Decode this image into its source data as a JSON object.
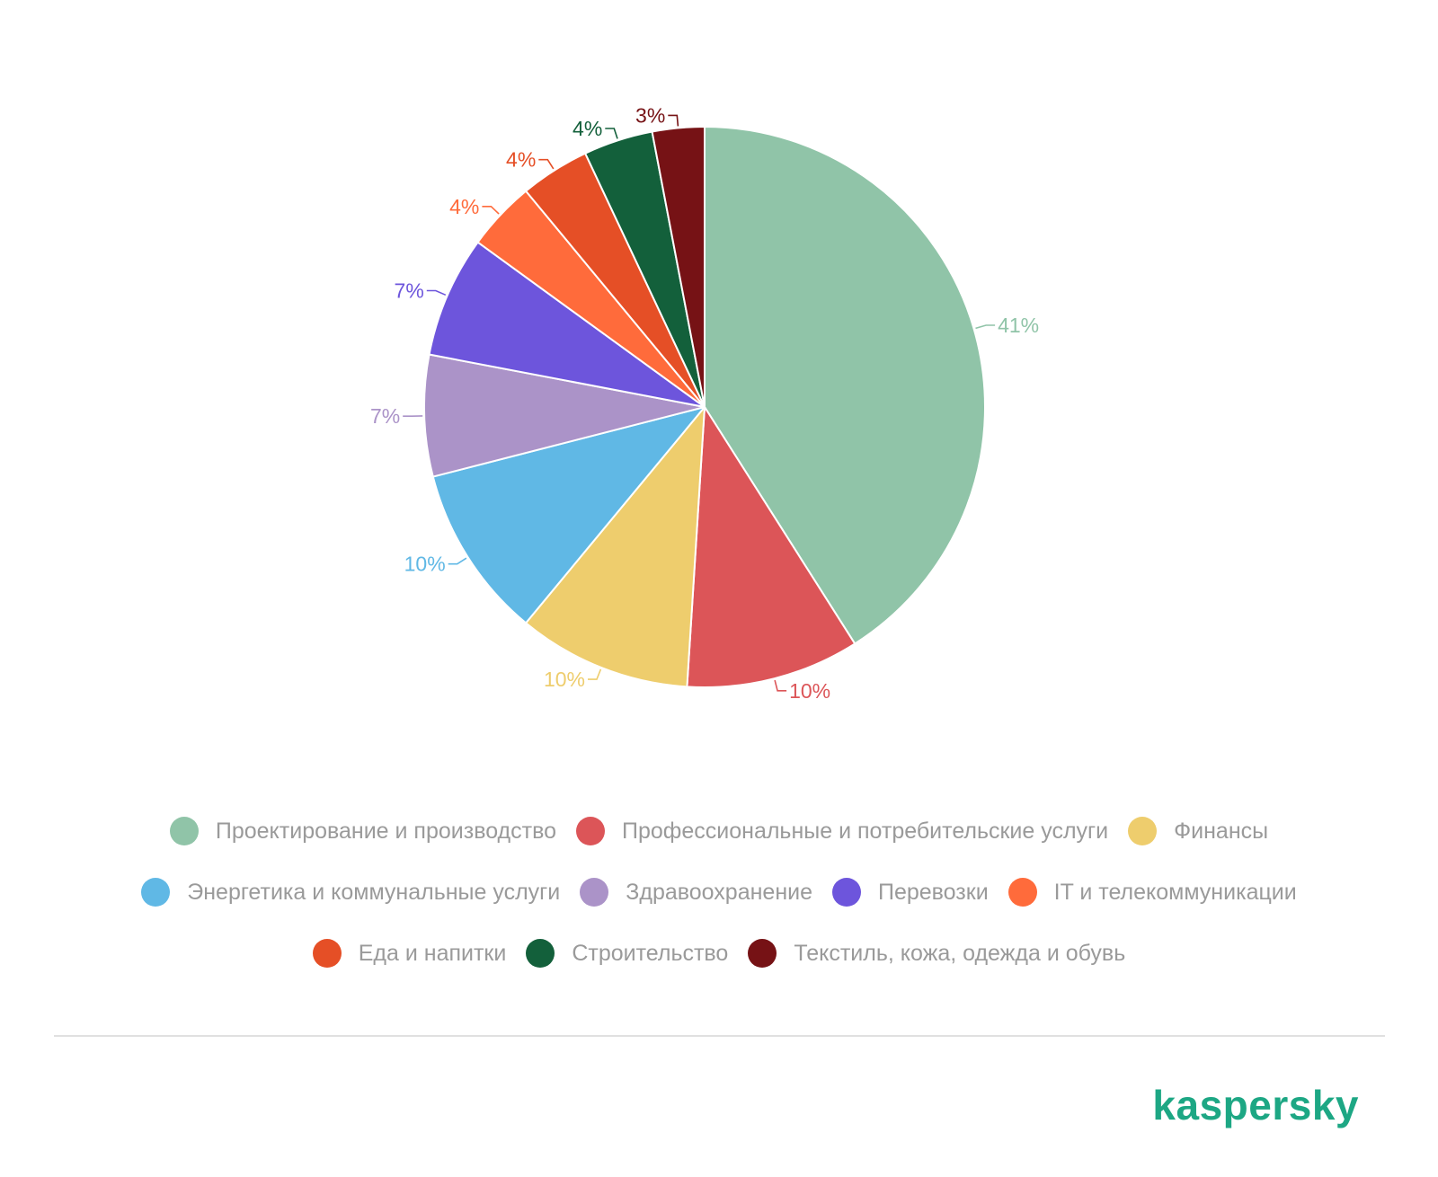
{
  "chart_data": {
    "type": "pie",
    "start_angle": "12 o'clock",
    "direction": "clockwise",
    "slices": [
      {
        "name": "Проектирование и производство",
        "value": 41,
        "label": "41%",
        "color": "#90c4a8"
      },
      {
        "name": "Профессиональные и потребительские услуги",
        "value": 10,
        "label": "10%",
        "color": "#dc5558"
      },
      {
        "name": "Финансы",
        "value": 10,
        "label": "10%",
        "color": "#eecd6d"
      },
      {
        "name": "Энергетика и коммунальные услуги",
        "value": 10,
        "label": "10%",
        "color": "#60b8e5"
      },
      {
        "name": "Здравоохранение",
        "value": 7,
        "label": "7%",
        "color": "#ab93c8"
      },
      {
        "name": "Перевозки",
        "value": 7,
        "label": "7%",
        "color": "#6d55dc"
      },
      {
        "name": "IT и телекоммуникации",
        "value": 4,
        "label": "4%",
        "color": "#ff6b3b"
      },
      {
        "name": "Еда и напитки",
        "value": 4,
        "label": "4%",
        "color": "#e54f26"
      },
      {
        "name": "Строительство",
        "value": 4,
        "label": "4%",
        "color": "#13603b"
      },
      {
        "name": "Текстиль, кожа, одежда и обувь",
        "value": 3,
        "label": "3%",
        "color": "#761215"
      }
    ],
    "legend_position": "bottom"
  },
  "legend_rows": [
    [
      {
        "label": "Проектирование и производство",
        "color": "#90c4a8"
      },
      {
        "label": "Профессиональные и потребительские услуги",
        "color": "#dc5558"
      },
      {
        "label": "Финансы",
        "color": "#eecd6d"
      }
    ],
    [
      {
        "label": "Энергетика и коммунальные услуги",
        "color": "#60b8e5"
      },
      {
        "label": "Здравоохранение",
        "color": "#ab93c8"
      },
      {
        "label": "Перевозки",
        "color": "#6d55dc"
      },
      {
        "label": "IT и телекоммуникации",
        "color": "#ff6b3b"
      }
    ],
    [
      {
        "label": "Еда и напитки",
        "color": "#e54f26"
      },
      {
        "label": "Строительство",
        "color": "#13603b"
      },
      {
        "label": "Текстиль, кожа, одежда и обувь",
        "color": "#761215"
      }
    ]
  ],
  "footer": {
    "logo_text": "kaspersky",
    "logo_color": "#1da784"
  }
}
